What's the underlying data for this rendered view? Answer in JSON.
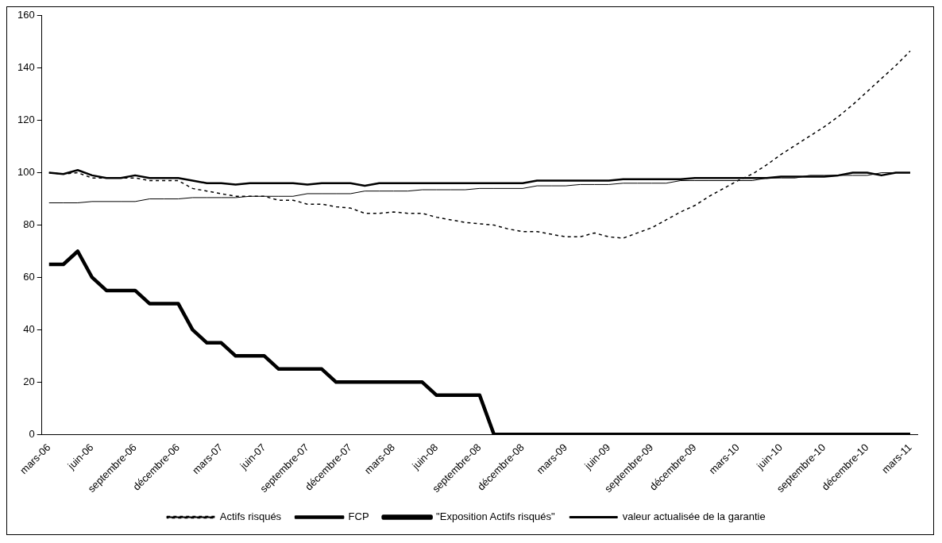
{
  "chart_data": {
    "type": "line",
    "categories": [
      "mars-06",
      null,
      null,
      "juin-06",
      null,
      null,
      "septembre-06",
      null,
      null,
      "décembre-06",
      null,
      null,
      "mars-07",
      null,
      null,
      "juin-07",
      null,
      null,
      "septembre-07",
      null,
      null,
      "décembre-07",
      null,
      null,
      "mars-08",
      null,
      null,
      "juin-08",
      null,
      null,
      "septembre-08",
      null,
      null,
      "décembre-08",
      null,
      null,
      "mars-09",
      null,
      null,
      "juin-09",
      null,
      null,
      "septembre-09",
      null,
      null,
      "décembre-09",
      null,
      null,
      "mars-10",
      null,
      null,
      "juin-10",
      null,
      null,
      "septembre-10",
      null,
      null,
      "décembre-10",
      null,
      null,
      "mars-11"
    ],
    "series": [
      {
        "name": "Actifs risqués",
        "color": "#000000",
        "line_style": "dashed",
        "values": [
          100,
          99.5,
          100,
          98,
          98,
          98,
          98,
          97,
          97,
          97,
          94,
          93,
          92,
          91,
          91,
          91,
          89.5,
          89.5,
          88,
          88,
          87,
          86.5,
          84.5,
          84.5,
          85,
          84.5,
          84.5,
          83,
          82,
          81,
          80.5,
          80,
          78.5,
          77.5,
          77.5,
          76.5,
          75.5,
          75.5,
          77,
          75.5,
          75,
          77,
          79,
          82,
          85,
          87.5,
          91,
          94,
          97,
          99.5,
          103,
          107,
          110.5,
          114,
          117.5,
          121.5,
          126,
          131,
          136,
          141,
          146.5
        ]
      },
      {
        "name": "FCP",
        "color": "#000000",
        "line_style": "solid",
        "values": [
          100,
          99.5,
          101,
          99,
          98,
          98,
          99,
          98,
          98,
          98,
          97,
          96,
          96,
          95.5,
          96,
          96,
          96,
          96,
          95.5,
          96,
          96,
          96,
          95,
          96,
          96,
          96,
          96,
          96,
          96,
          96,
          96,
          96,
          96,
          96,
          97,
          97,
          97,
          97,
          97,
          97,
          97.5,
          97.5,
          97.5,
          97.5,
          97.5,
          98,
          98,
          98,
          98,
          98,
          98,
          98.5,
          98.5,
          98.5,
          98.5,
          99,
          100,
          100,
          99,
          100,
          100
        ]
      },
      {
        "name": "\"Exposition Actifs risqués\"",
        "color": "#000000",
        "line_style": "solid",
        "values": [
          65,
          65,
          70,
          60,
          55,
          55,
          55,
          50,
          50,
          50,
          40,
          35,
          35,
          30,
          30,
          30,
          25,
          25,
          25,
          25,
          20,
          20,
          20,
          20,
          20,
          20,
          20,
          15,
          15,
          15,
          15,
          0,
          0,
          0,
          0,
          0,
          0,
          0,
          0,
          0,
          0,
          0,
          0,
          0,
          0,
          0,
          0,
          0,
          0,
          0,
          0,
          0,
          0,
          0,
          0,
          0,
          0,
          0,
          0,
          0,
          0
        ]
      },
      {
        "name": "valeur actualisée de la garantie",
        "color": "#000000",
        "line_style": "solid",
        "values": [
          88.5,
          88.5,
          88.5,
          89,
          89,
          89,
          89,
          90,
          90,
          90,
          90.5,
          90.5,
          90.5,
          90.5,
          91,
          91,
          91,
          91,
          92,
          92,
          92,
          92,
          93,
          93,
          93,
          93,
          93.5,
          93.5,
          93.5,
          93.5,
          94,
          94,
          94,
          94,
          95,
          95,
          95,
          95.5,
          95.5,
          95.5,
          96,
          96,
          96,
          96,
          97,
          97,
          97,
          97,
          97,
          97,
          98,
          98,
          98,
          99,
          99,
          99,
          99,
          99,
          100,
          100,
          100
        ]
      }
    ],
    "ylim": [
      0,
      160
    ],
    "yticks": [
      0,
      20,
      40,
      60,
      80,
      100,
      120,
      140,
      160
    ],
    "grid": false,
    "legend": "bottom",
    "marker": "none"
  }
}
